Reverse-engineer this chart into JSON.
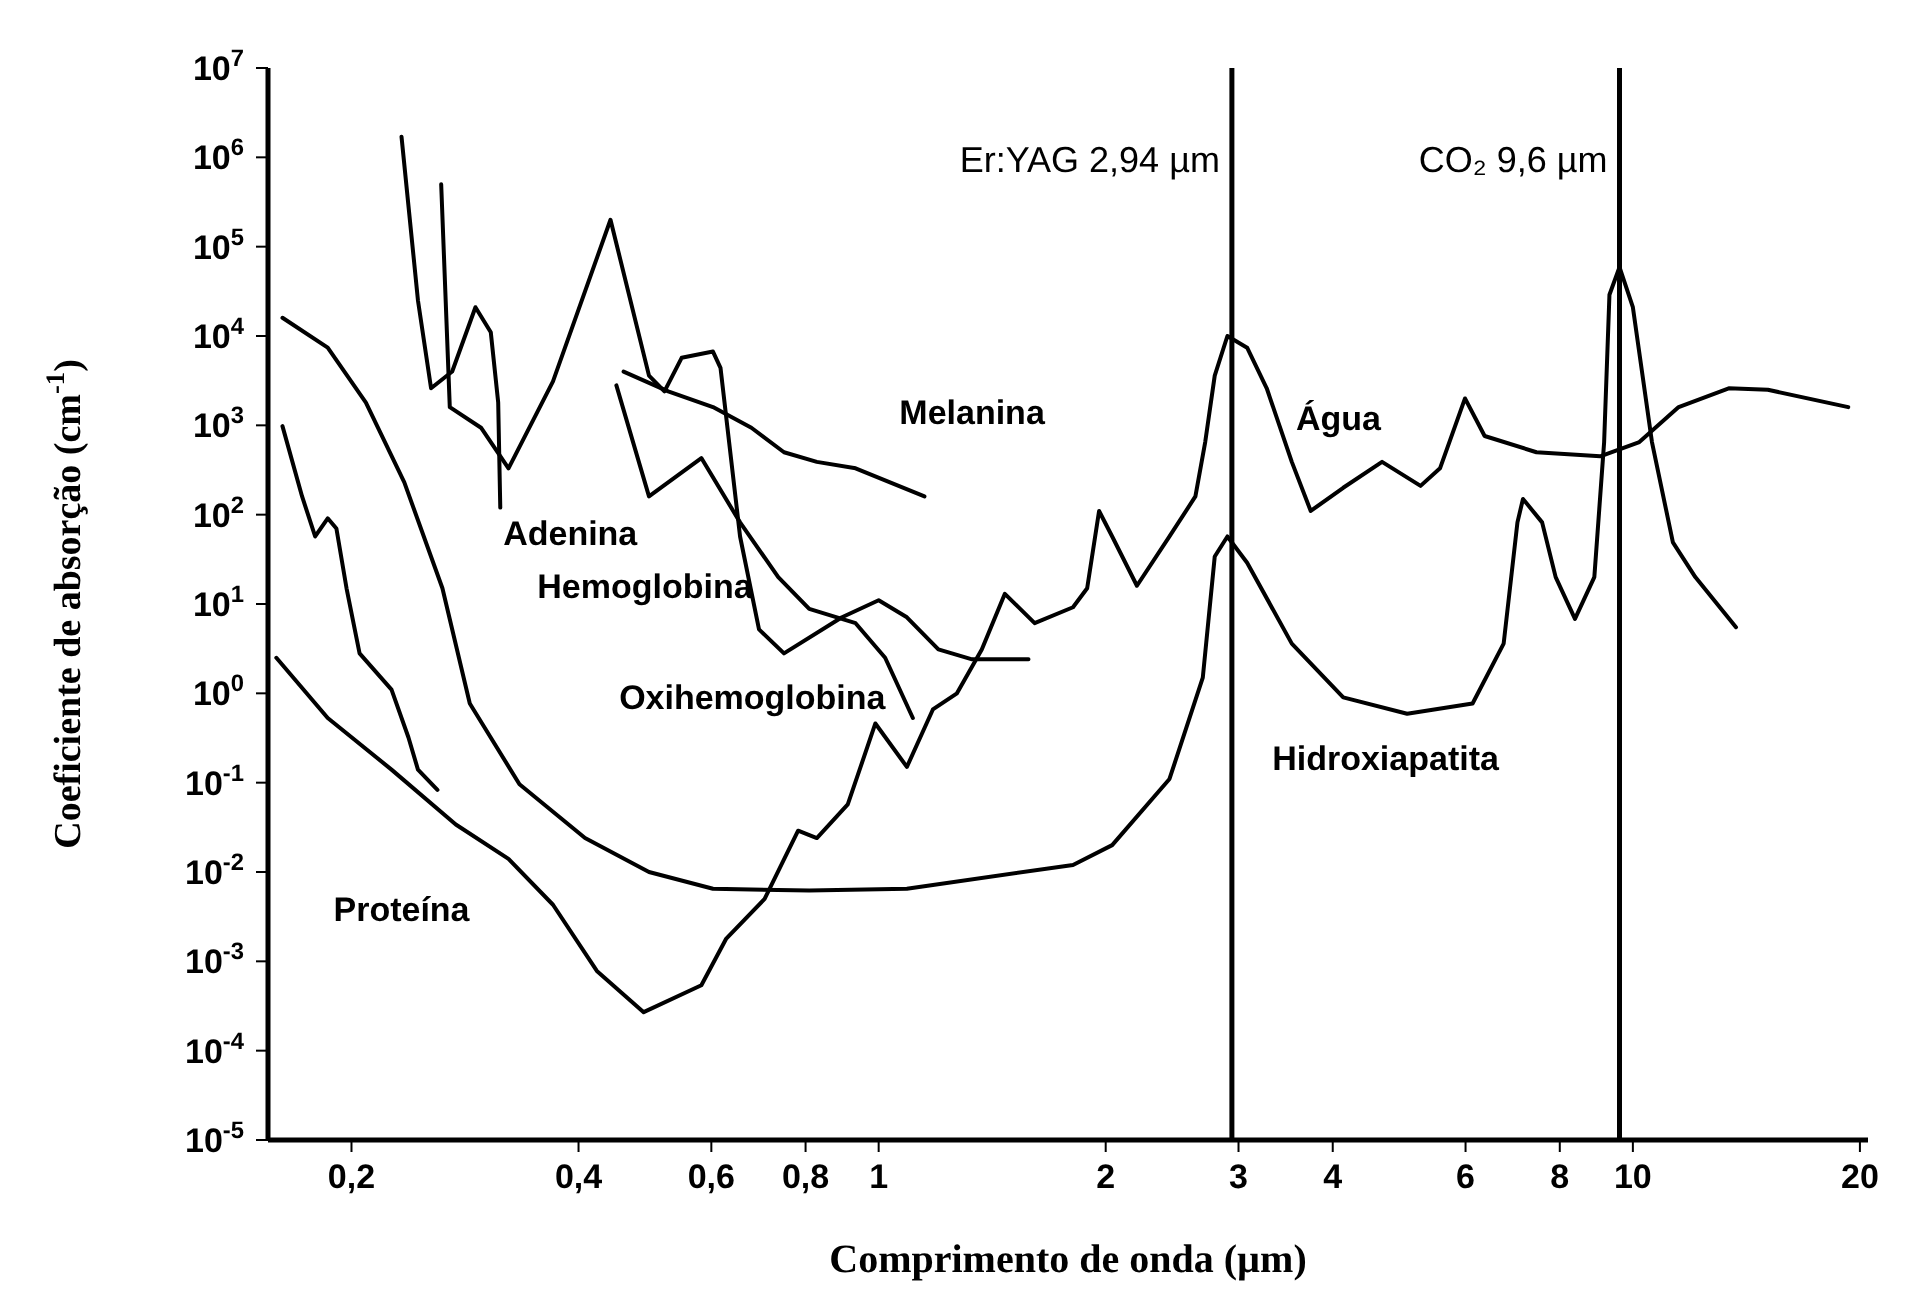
{
  "chart_data": {
    "type": "line",
    "xlabel": "Comprimento de onda (µm)",
    "ylabel": "Coeficiente de absorção (cm$^{-1}$)",
    "log": "xy",
    "line_style": "solid",
    "xlim": [
      0.155,
      20.5
    ],
    "xticks": [
      {
        "value": 0.2,
        "label": "0,2"
      },
      {
        "value": 0.4,
        "label": "0,4"
      },
      {
        "value": 0.6,
        "label": "0,6"
      },
      {
        "value": 0.8,
        "label": "0,8"
      },
      1,
      2,
      3,
      4,
      6,
      8,
      10,
      20
    ],
    "ylim": [
      1e-05,
      10000000.0
    ],
    "yticks": [
      {
        "value": 1e-05,
        "label": "10$^{-5}$"
      },
      {
        "value": 0.0001,
        "label": "10$^{-4}$"
      },
      {
        "value": 0.001,
        "label": "10$^{-3}$"
      },
      {
        "value": 0.01,
        "label": "10$^{-2}$"
      },
      {
        "value": 0.1,
        "label": "10$^{-1}$"
      },
      {
        "value": 1,
        "label": "10$^{0}$"
      },
      {
        "value": 10,
        "label": "10$^{1}$"
      },
      {
        "value": 100,
        "label": "10$^{2}$"
      },
      {
        "value": 1000,
        "label": "10$^{3}$"
      },
      {
        "value": 10000,
        "label": "10$^{4}$"
      },
      {
        "value": 100000,
        "label": "10$^{5}$"
      },
      {
        "value": 1000000,
        "label": "10$^{6}$"
      },
      {
        "value": 10000000,
        "label": "10$^{7}$"
      }
    ],
    "series": [
      {
        "color": "#000000",
        "x": [
          0.162,
          0.186,
          0.209,
          0.235,
          0.264,
          0.287,
          0.334,
          0.408,
          0.496,
          0.603,
          0.809,
          1.09,
          1.81,
          2.04,
          2.43,
          2.69,
          2.79,
          2.9,
          3.08,
          3.53,
          4.13,
          5.02,
          6.13,
          6.74,
          7.03,
          7.15,
          7.58,
          7.9,
          8.38,
          8.89,
          9.16,
          9.31,
          9.6,
          10,
          10.6,
          11.3,
          12.1,
          13.7
        ],
        "values": [
          16000,
          7400,
          1800,
          230,
          15,
          0.77,
          0.096,
          0.024,
          0.01,
          0.0065,
          0.0062,
          0.0065,
          0.012,
          0.02,
          0.11,
          1.5,
          34,
          57,
          29,
          3.6,
          0.9,
          0.59,
          0.77,
          3.6,
          82,
          150,
          82,
          20,
          6.8,
          20,
          650,
          29000,
          59000,
          21000,
          650,
          49,
          20,
          5.5
        ]
      },
      {
        "color": "#000000",
        "x": [
          0.159,
          0.186,
          0.226,
          0.275,
          0.323,
          0.37,
          0.423,
          0.488,
          0.582,
          0.628,
          0.706,
          0.782,
          0.828,
          0.91,
          0.99,
          1.09,
          1.18,
          1.27,
          1.37,
          1.47,
          1.61,
          1.81,
          1.89,
          1.96,
          2.04,
          2.2,
          2.43,
          2.63,
          2.71,
          2.79,
          2.9,
          3.08,
          3.27,
          3.53,
          3.74,
          4.13,
          4.65,
          5.23,
          5.55,
          5.99,
          6.36,
          7.45,
          9.05,
          10.2,
          11.5,
          13.4,
          15.1,
          19.3
        ],
        "values": [
          2.5,
          0.53,
          0.14,
          0.034,
          0.014,
          0.0043,
          0.00078,
          0.00027,
          0.00054,
          0.0018,
          0.005,
          0.029,
          0.024,
          0.057,
          0.46,
          0.15,
          0.66,
          1,
          3.1,
          13,
          6.1,
          9.2,
          15,
          110,
          57,
          16,
          57,
          160,
          650,
          3600,
          10000,
          7400,
          2600,
          390,
          110,
          200,
          390,
          210,
          330,
          2000,
          760,
          500,
          450,
          650,
          1600,
          2600,
          2500,
          1600
        ]
      },
      {
        "color": "#000000",
        "x": [
          0.233,
          0.245,
          0.255,
          0.272,
          0.292,
          0.306,
          0.313,
          0.315
        ],
        "values": [
          1700000,
          25000,
          2600,
          4000,
          21000,
          11000,
          1800,
          120
        ]
      },
      {
        "color": "#000000",
        "x": [
          0.263,
          0.27,
          0.297,
          0.323,
          0.37,
          0.441,
          0.496,
          0.52,
          0.548,
          0.603,
          0.617,
          0.655,
          0.694,
          0.749,
          0.894,
          1,
          1.09,
          1.2,
          1.33,
          1.58
        ],
        "values": [
          500000,
          1600,
          940,
          330,
          3100,
          200000,
          3600,
          2400,
          5700,
          6700,
          4400,
          57,
          5.2,
          2.8,
          7.1,
          11,
          7.1,
          3.1,
          2.4,
          2.4
        ]
      },
      {
        "color": "#000000",
        "x": [
          0.449,
          0.496,
          0.582,
          0.655,
          0.736,
          0.809,
          0.932,
          1.02,
          1.11
        ],
        "values": [
          2800,
          160,
          430,
          82,
          20,
          8.8,
          6.1,
          2.5,
          0.53
        ]
      },
      {
        "color": "#000000",
        "x": [
          0.459,
          0.526,
          0.603,
          0.678,
          0.749,
          0.828,
          0.932,
          1.15
        ],
        "values": [
          4000,
          2400,
          1600,
          940,
          500,
          390,
          330,
          160
        ]
      },
      {
        "color": "#000000",
        "x": [
          0.162,
          0.172,
          0.179,
          0.186,
          0.191,
          0.197,
          0.205,
          0.226,
          0.238,
          0.245,
          0.26
        ],
        "values": [
          980,
          160,
          57,
          91,
          70,
          15,
          2.8,
          1.1,
          0.32,
          0.14,
          0.083
        ]
      }
    ],
    "ref_lines": [
      {
        "axis": "x",
        "value": 2.94,
        "label": "Er:YAG  2,94 µm",
        "color": "#000000"
      },
      {
        "axis": "x",
        "value": 9.6,
        "label": "CO₂ 9,6 µm",
        "color": "#000000"
      }
    ],
    "annotations": [
      "Adenina",
      "Hemoglobina",
      "Melanina",
      "Oxihemoglobina",
      "Proteína",
      "Água",
      "Hidroxiapatita"
    ]
  }
}
